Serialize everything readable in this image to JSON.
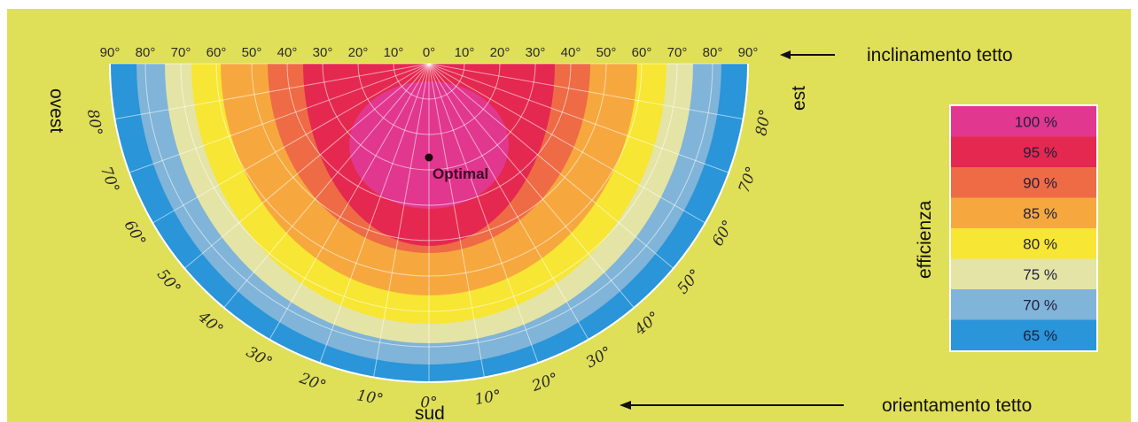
{
  "colors": {
    "background": "#e0df58",
    "panel_border": "#ffffff",
    "grid": "#ffffff",
    "arrow": "#111111"
  },
  "chart_data": {
    "type": "polar_efficiency",
    "top_axis": {
      "title": "inclinamento tetto",
      "ticks": [
        "90°",
        "80°",
        "70°",
        "60°",
        "50°",
        "40°",
        "30°",
        "20°",
        "10°",
        "0°",
        "10°",
        "20°",
        "30°",
        "40°",
        "50°",
        "60°",
        "70°",
        "80°",
        "90°"
      ]
    },
    "bottom_axis": {
      "title": "orientamento tetto",
      "ticks_left": [
        "80°",
        "70°",
        "60°",
        "50°",
        "40°",
        "30°",
        "20°",
        "10°"
      ],
      "center_tick": "0°",
      "ticks_right": [
        "10°",
        "20°",
        "30°",
        "40°",
        "50°",
        "60°",
        "70°",
        "80°"
      ]
    },
    "direction_labels": {
      "west": "ovest",
      "east": "est",
      "south": "sud"
    },
    "legend": {
      "title": "efficienza",
      "items": [
        {
          "label": "100 %",
          "value": 100,
          "color": "#e2378f"
        },
        {
          "label": "95 %",
          "value": 95,
          "color": "#e5284f"
        },
        {
          "label": "90 %",
          "value": 90,
          "color": "#ee6b45"
        },
        {
          "label": "85 %",
          "value": 85,
          "color": "#f6a83f"
        },
        {
          "label": "80 %",
          "value": 80,
          "color": "#f7e633"
        },
        {
          "label": "75 %",
          "value": 75,
          "color": "#e4e4a6"
        },
        {
          "label": "70 %",
          "value": 70,
          "color": "#80b4d8"
        },
        {
          "label": "65 %",
          "value": 65,
          "color": "#2a95d8"
        }
      ]
    },
    "optimal": {
      "label": "Optimal",
      "tilt_deg": 30,
      "orientation_deg": 0
    }
  }
}
